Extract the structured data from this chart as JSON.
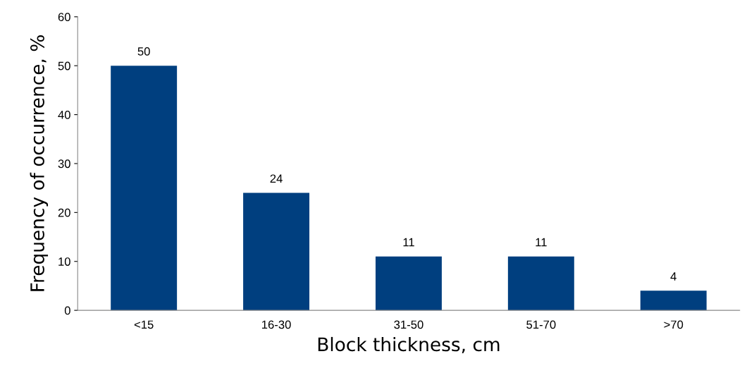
{
  "chart_data": {
    "type": "bar",
    "xlabel": "Block thickness, cm",
    "ylabel": "Frequency of occurrence, %",
    "categories": [
      "<15",
      "16-30",
      "31-50",
      "51-70",
      ">70"
    ],
    "values": [
      50,
      24,
      11,
      11,
      4
    ],
    "color": "#003f7f",
    "ylim": [
      0,
      60
    ],
    "yticks": [
      0,
      10,
      20,
      30,
      40,
      50,
      60
    ],
    "grid": false,
    "data_labels": true
  }
}
